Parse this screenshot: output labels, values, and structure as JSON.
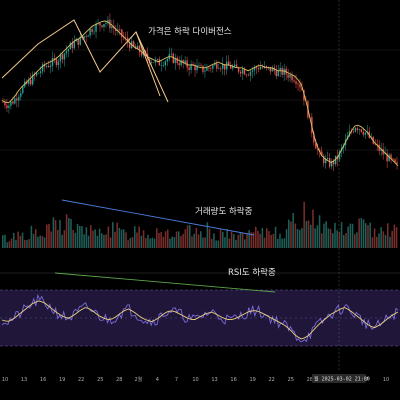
{
  "colors": {
    "background": "#000000",
    "up": "#26a69a",
    "down": "#ef5350",
    "price_ma": "#d8c063",
    "divergence_lines": "#f3c98b",
    "volume_trend": "#4a7de0",
    "rsi_line": "#7b6ad8",
    "rsi_ma": "#e8d27a",
    "rsi_band": "#2a1f4a",
    "rsi_trend": "#5aa54a",
    "text": "#e6e6e6",
    "axis_text": "#b0b0b0"
  },
  "annotations": {
    "price": "가격은 하락 다이버전스",
    "volume": "거래량도 하락중",
    "rsi": "RSI도 하락중"
  },
  "x_axis": {
    "ticks": [
      "10",
      "13",
      "16",
      "19",
      "22",
      "25",
      "28",
      "2월",
      "4",
      "7",
      "10",
      "13",
      "16",
      "19",
      "22",
      "25",
      "28",
      "3월",
      "4",
      "7",
      "10"
    ],
    "cursor_label": "월 2025-03-02 21:00"
  },
  "chart_data": {
    "type": "line",
    "panels": [
      {
        "name": "",
        "series": [
          {
            "values": [
              58,
              57,
              59,
              62,
              64,
              66,
              68,
              70,
              71,
              72,
              74,
              76,
              78,
              79,
              81,
              83,
              84,
              85,
              84,
              82,
              80,
              78,
              76,
              75,
              73,
              72,
              71,
              72,
              73,
              72,
              71,
              70,
              70,
              69,
              69,
              70,
              71,
              70,
              70,
              69,
              69,
              68,
              69,
              70,
              69,
              69,
              68,
              68,
              67,
              66,
              63,
              55,
              46,
              40,
              38,
              37,
              39,
              43,
              47,
              50,
              49,
              47,
              44,
              42,
              40,
              38,
              36
            ]
          }
        ]
      },
      {
        "name": "",
        "series": [
          {
            "values": [
              5,
              4,
              6,
              7,
              6,
              8,
              5,
              7,
              9,
              12,
              10,
              14,
              9,
              8,
              10,
              7,
              6,
              11,
              8,
              9,
              7,
              6,
              8,
              10,
              7,
              6,
              9,
              8,
              7,
              6,
              5,
              8,
              7,
              6,
              9,
              7,
              6,
              8,
              5,
              7,
              6,
              5,
              8,
              6,
              7,
              9,
              8,
              7,
              10,
              12,
              14,
              18,
              16,
              13,
              10,
              9,
              11,
              8,
              9,
              10,
              12,
              9,
              8,
              11,
              10,
              9,
              8
            ]
          }
        ]
      },
      {
        "name": "",
        "ylim": [
          0,
          100
        ],
        "series": [
          {
            "values": [
              50,
              48,
              52,
              58,
              64,
              70,
              74,
              72,
              66,
              60,
              55,
              52,
              56,
              62,
              66,
              62,
              56,
              52,
              50,
              54,
              60,
              64,
              60,
              54,
              50,
              48,
              52,
              58,
              62,
              60,
              56,
              52,
              50,
              54,
              58,
              60,
              56,
              52,
              50,
              52,
              56,
              60,
              62,
              60,
              56,
              52,
              48,
              44,
              38,
              30,
              26,
              30,
              38,
              46,
              52,
              58,
              62,
              66,
              62,
              56,
              50,
              44,
              40,
              44,
              50,
              56,
              60
            ]
          }
        ]
      }
    ]
  }
}
